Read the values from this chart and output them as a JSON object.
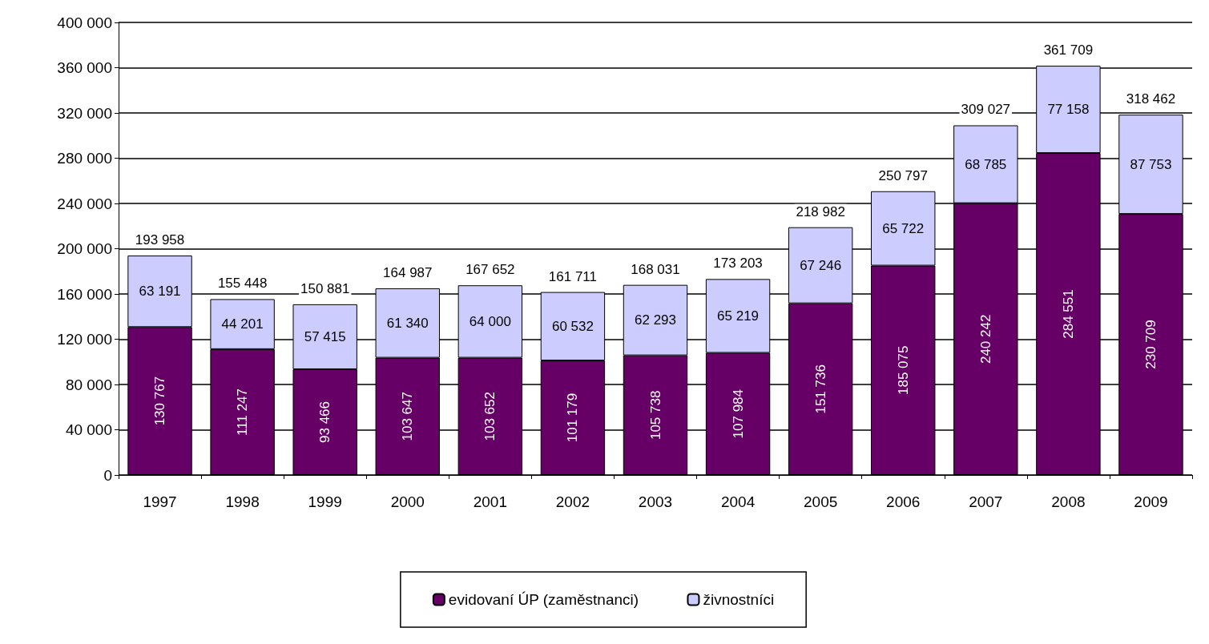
{
  "chart_data": {
    "type": "bar",
    "stacked": true,
    "categories": [
      "1997",
      "1998",
      "1999",
      "2000",
      "2001",
      "2002",
      "2003",
      "2004",
      "2005",
      "2006",
      "2007",
      "2008",
      "2009"
    ],
    "series": [
      {
        "name": "evidovaní ÚP (zaměstnanci)",
        "color": "#660066",
        "values": [
          130767,
          111247,
          93466,
          103647,
          103652,
          101179,
          105738,
          107984,
          151736,
          185075,
          240242,
          284551,
          230709
        ],
        "value_labels": [
          "130 767",
          "111 247",
          "93 466",
          "103 647",
          "103 652",
          "101 179",
          "105 738",
          "107 984",
          "151 736",
          "185 075",
          "240 242",
          "284 551",
          "230 709"
        ]
      },
      {
        "name": "živnostníci",
        "color": "#ccccff",
        "values": [
          63191,
          44201,
          57415,
          61340,
          64000,
          60532,
          62293,
          65219,
          67246,
          65722,
          68785,
          77158,
          87753
        ],
        "value_labels": [
          "63 191",
          "44 201",
          "57 415",
          "61 340",
          "64 000",
          "60 532",
          "62 293",
          "65 219",
          "67 246",
          "65 722",
          "68 785",
          "77 158",
          "87 753"
        ]
      }
    ],
    "totals": [
      "193 958",
      "155 448",
      "150 881",
      "164 987",
      "167 652",
      "161 711",
      "168 031",
      "173 203",
      "218 982",
      "250 797",
      "309 027",
      "361 709",
      "318 462"
    ],
    "ylim": [
      0,
      400000
    ],
    "yticks": [
      0,
      {
        "value": 40000,
        "label": "40 000"
      },
      {
        "value": 80000,
        "label": "80 000"
      },
      {
        "value": 120000,
        "label": "120 000"
      },
      {
        "value": 160000,
        "label": "160 000"
      },
      {
        "value": 200000,
        "label": "200 000"
      },
      {
        "value": 240000,
        "label": "240 000"
      },
      {
        "value": 280000,
        "label": "280 000"
      },
      {
        "value": 320000,
        "label": "320 000"
      },
      {
        "value": 360000,
        "label": "360 000"
      },
      {
        "value": 400000,
        "label": "400 000"
      }
    ],
    "grid": "y",
    "legend": "bottom"
  }
}
